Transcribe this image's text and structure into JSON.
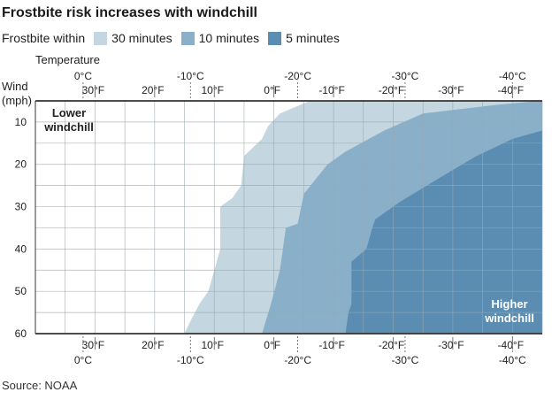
{
  "title": "Frostbite risk increases with windchill",
  "source": "Source: NOAA",
  "legend": {
    "prefix": "Frostbite within",
    "items": [
      {
        "label": "30 minutes",
        "color": "#c4d6df"
      },
      {
        "label": "10 minutes",
        "color": "#89b0c8"
      },
      {
        "label": "5 minutes",
        "color": "#5a8db1"
      }
    ]
  },
  "chart_data": {
    "type": "area",
    "x_label": "Temperature",
    "y_label_line1": "Wind",
    "y_label_line2": "(mph)",
    "x_unit": "°F",
    "x_range": [
      40,
      -45
    ],
    "y_range": [
      5,
      60
    ],
    "fahrenheit_ticks": [
      {
        "value": 30,
        "label": "30°F"
      },
      {
        "value": 20,
        "label": "20°F"
      },
      {
        "value": 10,
        "label": "10°F"
      },
      {
        "value": 0,
        "label": "0°F"
      },
      {
        "value": -10,
        "label": "-10°F"
      },
      {
        "value": -20,
        "label": "-20°F"
      },
      {
        "value": -30,
        "label": "-30°F"
      },
      {
        "value": -40,
        "label": "-40°F"
      }
    ],
    "celsius_ticks": [
      {
        "value": 32,
        "label": "0°C"
      },
      {
        "value": 14,
        "label": "-10°C"
      },
      {
        "value": -4,
        "label": "-20°C"
      },
      {
        "value": -22,
        "label": "-30°C"
      },
      {
        "value": -40,
        "label": "-40°C"
      }
    ],
    "wind_ticks": [
      {
        "value": 10,
        "label": "10"
      },
      {
        "value": 20,
        "label": "20"
      },
      {
        "value": 30,
        "label": "30"
      },
      {
        "value": 40,
        "label": "40"
      },
      {
        "value": 50,
        "label": "50"
      },
      {
        "value": 60,
        "label": "60"
      }
    ],
    "series": [
      {
        "name": "30 minutes",
        "color": "#c4d6df",
        "boundary": [
          [
            -6,
            5
          ],
          [
            -1,
            8
          ],
          [
            1,
            11
          ],
          [
            2,
            14
          ],
          [
            5,
            18
          ],
          [
            5.5,
            25
          ],
          [
            7,
            28
          ],
          [
            9,
            30
          ],
          [
            9,
            40
          ],
          [
            11,
            50
          ],
          [
            12.5,
            53
          ],
          [
            14,
            57
          ],
          [
            15,
            60
          ]
        ]
      },
      {
        "name": "10 minutes",
        "color": "#89b0c8",
        "boundary": [
          [
            -44.5,
            5
          ],
          [
            -37,
            6
          ],
          [
            -25,
            8
          ],
          [
            -18.5,
            12
          ],
          [
            -12,
            17
          ],
          [
            -9,
            20
          ],
          [
            -5,
            27
          ],
          [
            -4,
            34
          ],
          [
            -2,
            35
          ],
          [
            -1.5,
            40
          ],
          [
            -1,
            45
          ],
          [
            0.5,
            53
          ],
          [
            2,
            60
          ]
        ]
      },
      {
        "name": "5 minutes",
        "color": "#5a8db1",
        "boundary": [
          [
            -45,
            12
          ],
          [
            -40,
            14
          ],
          [
            -34,
            18
          ],
          [
            -28,
            23
          ],
          [
            -21,
            29
          ],
          [
            -17,
            33
          ],
          [
            -16.5,
            35
          ],
          [
            -15.5,
            40
          ],
          [
            -13,
            43
          ],
          [
            -13,
            53
          ],
          [
            -12.5,
            55
          ],
          [
            -12,
            60
          ]
        ]
      }
    ],
    "annotations": {
      "top_left_line1": "Lower",
      "top_left_line2": "windchill",
      "bottom_right_line1": "Higher",
      "bottom_right_line2": "windchill"
    }
  }
}
